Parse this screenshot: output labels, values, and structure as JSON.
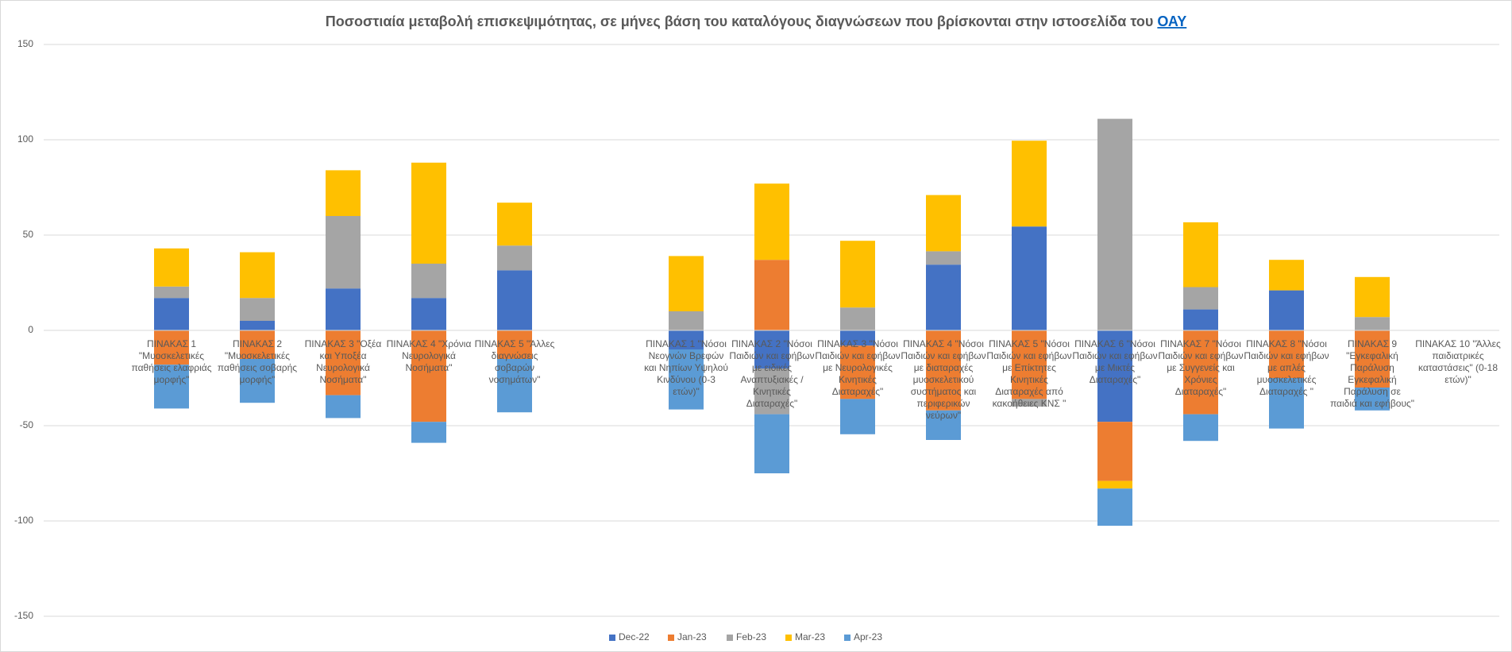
{
  "chart_data": {
    "type": "stacked_bar",
    "title": "Ποσοστιαία μεταβολή  επισκεψιμότητας, σε μήνες βάση του καταλόγους διαγνώσεων που βρίσκονται στην ιστοσελίδα του ",
    "title_link": "ΟΑΥ",
    "categories": [
      "ΠΙΝΑΚΑΣ 1 \"Μυοσκελετικές παθήσεις ελαφριάς μορφής\"",
      "ΠΙΝΑΚΑΣ 2 \"Μυοσκελετικές παθήσεις σοβαρής μορφής\"",
      "ΠΙΝΑΚΑΣ 3 \"Οξέα και Υποξέα Νευρολογικά Νοσήματα\"",
      "ΠΙΝΑΚΑΣ 4 \"Χρόνια Νευρολογικά Νοσήματα\"",
      "ΠΙΝΑΚΑΣ 5 \"Άλλες διαγνώσεις σοβαρών νοσημάτων\"",
      null,
      "ΠΙΝΑΚΑΣ 1 \"Νόσοι Νεογνών Βρεφών και Νηπίων Υψηλού Κινδύνου  (0-3 ετών)\"",
      "ΠΙΝΑΚΑΣ 2 \"Νόσοι Παιδιών και εφήβων με ειδικές Αναπτυξιακές / Κινητικές Διαταραχές\"",
      "ΠΙΝΑΚΑΣ 3 \"Νόσοι Παιδιών και εφήβων με Νευρολογικές Κινητικές Διαταραχές\"",
      "ΠΙΝΑΚΑΣ 4 \"Νόσοι Παιδιών και εφήβων με διαταραχές μυοσκελετικού συστήματος και περιφερικών νεύρων\"",
      "ΠΙΝΑΚΑΣ 5 \"Νόσοι Παιδιών και εφήβων με Επίκτητες Κινητικές Διαταραχές από κακοήθειες ΚΝΣ \"",
      "ΠΙΝΑΚΑΣ 6 \"Νόσοι Παιδιών και εφήβων με Μικτές Διαταραχές\"",
      "ΠΙΝΑΚΑΣ 7 \"Νόσοι Παιδιών και εφήβων με Συγγενείς και Χρόνιες Διαταραχές\"",
      "ΠΙΝΑΚΑΣ 8 \"Νόσοι Παιδιών και εφήβων με απλές μυοσκελετικές Διαταραχές \"",
      "ΠΙΝΑΚΑΣ 9 \"Εγκεφαλική Παράλυση Εγκεφαλική Παράλυση σε παιδιά και εφήβους\"",
      "ΠΙΝΑΚΑΣ 10 \"Άλλες παιδιατρικές καταστάσεις\" (0-18 ετών)\""
    ],
    "series": [
      {
        "name": "Dec-22",
        "color": "#4472c4",
        "values": [
          17,
          5,
          22,
          17,
          31.5,
          null,
          -10,
          -20,
          -8,
          34.5,
          54.5,
          -48,
          11,
          21,
          0,
          null
        ]
      },
      {
        "name": "Jan-23",
        "color": "#ed7d31",
        "values": [
          -18,
          -15,
          -34,
          -48,
          -15,
          null,
          0,
          37,
          -28,
          -42,
          -36,
          -31,
          -44,
          -25,
          -30,
          null
        ]
      },
      {
        "name": "Feb-23",
        "color": "#a5a5a5",
        "values": [
          6,
          12,
          38,
          18,
          13,
          null,
          10,
          -24,
          12,
          7,
          -4,
          111,
          11.7,
          0,
          7,
          null
        ]
      },
      {
        "name": "Mar-23",
        "color": "#ffc000",
        "values": [
          20,
          24,
          24,
          53,
          22.5,
          null,
          29,
          40,
          35,
          29.5,
          45,
          -4,
          34,
          16,
          21,
          null
        ]
      },
      {
        "name": "Apr-23",
        "color": "#5b9bd5",
        "values": [
          -23,
          -23,
          -12,
          -11,
          -28,
          null,
          -31.5,
          -31,
          -18.5,
          -15.5,
          0,
          -19.5,
          -14,
          -26.5,
          -12,
          null
        ]
      }
    ],
    "ylim": [
      -150,
      150
    ],
    "yticks": [
      -150,
      -100,
      -50,
      0,
      50,
      100,
      150
    ],
    "grid": true,
    "legend": "bottom"
  }
}
